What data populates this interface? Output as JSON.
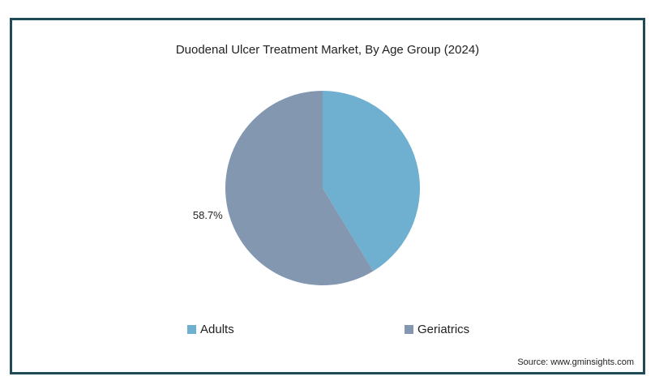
{
  "chart_data": {
    "type": "pie",
    "title": "Duodenal Ulcer Treatment Market, By Age Group (2024)",
    "categories": [
      "Adults",
      "Geriatrics"
    ],
    "values": [
      41.3,
      58.7
    ],
    "data_labels": [
      "",
      "58.7%"
    ],
    "unit": "%",
    "colors": [
      "#6fafd0",
      "#8497b0"
    ],
    "legend_position": "bottom"
  },
  "source": "Source: www.gminsights.com"
}
